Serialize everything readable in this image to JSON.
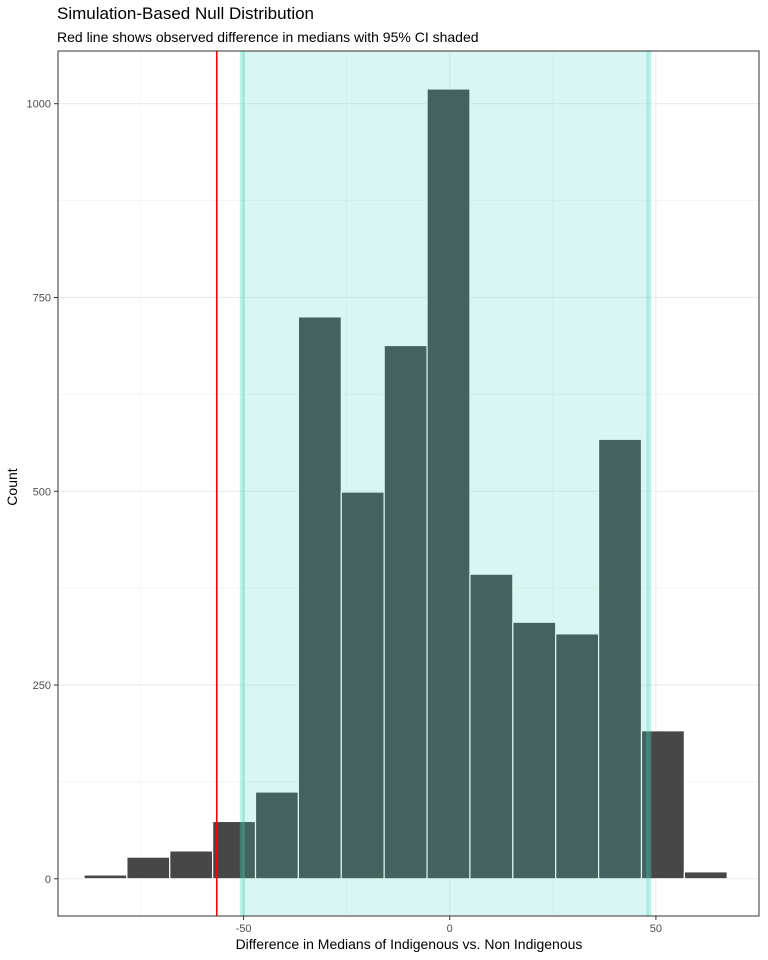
{
  "chart_data": {
    "type": "bar",
    "title": "Simulation-Based Null Distribution",
    "subtitle": "Red line shows observed difference in medians with 95% CI shaded",
    "xlabel": "Difference in Medians of Indigenous vs. Non Indigenous",
    "ylabel": "Count",
    "xlim": [
      -95,
      75
    ],
    "ylim": [
      -48,
      1068
    ],
    "x_ticks": [
      -50,
      0,
      50
    ],
    "y_ticks": [
      0,
      250,
      500,
      750,
      1000
    ],
    "bin_width": 10.4,
    "bins": [
      {
        "center": -83.5,
        "count": 5
      },
      {
        "center": -73.1,
        "count": 28
      },
      {
        "center": -62.7,
        "count": 36
      },
      {
        "center": -52.3,
        "count": 74
      },
      {
        "center": -41.9,
        "count": 112
      },
      {
        "center": -31.5,
        "count": 725
      },
      {
        "center": -21.1,
        "count": 499
      },
      {
        "center": -10.7,
        "count": 688
      },
      {
        "center": -0.3,
        "count": 1019
      },
      {
        "center": 10.1,
        "count": 393
      },
      {
        "center": 20.5,
        "count": 331
      },
      {
        "center": 30.9,
        "count": 316
      },
      {
        "center": 41.3,
        "count": 567
      },
      {
        "center": 51.7,
        "count": 191
      },
      {
        "center": 62.1,
        "count": 9
      }
    ],
    "observed_difference": -56.5,
    "ci_95": [
      -50.3,
      48.3
    ],
    "colors": {
      "bar_fill": "#474747",
      "bar_outline": "#ffffff",
      "ci_shade": "#d6f6f1",
      "ci_edge": "#a9e8dc",
      "bar_in_ci": "#466760",
      "observed_line": "#ff0000"
    },
    "grid": true,
    "legend": "none"
  }
}
